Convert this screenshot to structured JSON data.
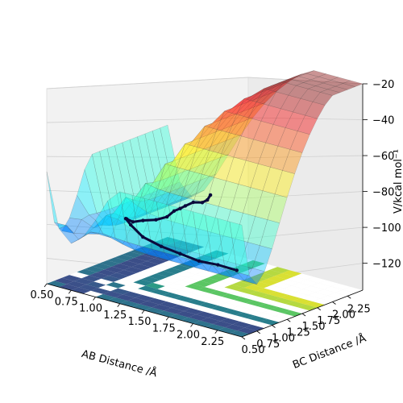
{
  "chart_data": {
    "type": "surface3d",
    "title": "",
    "xlabel": "AB Distance /Å",
    "ylabel": "BC Distance /Å",
    "zlabel": "V/kcal mol⁻¹",
    "xlim": [
      0.5,
      2.5
    ],
    "ylim": [
      0.5,
      2.5
    ],
    "zlim": [
      -135,
      -20
    ],
    "x_ticks": [
      "0.50",
      "0.75",
      "1.00",
      "1.25",
      "1.50",
      "1.75",
      "2.00",
      "2.25"
    ],
    "y_ticks": [
      "0.50",
      "0.75",
      "1.00",
      "1.25",
      "1.50",
      "1.75",
      "2.00",
      "2.25"
    ],
    "z_ticks": [
      "−20",
      "−40",
      "−60",
      "−80",
      "−100",
      "−120"
    ],
    "z_tick_values": [
      -20,
      -40,
      -60,
      -80,
      -100,
      -120
    ],
    "surface_colormap": "jet",
    "contour_colormap": "viridis",
    "grid": true,
    "trajectory": {
      "color": "#0a0a3c",
      "ab_distance": [
        2.3,
        2.1,
        1.9,
        1.7,
        1.5,
        1.3,
        1.15,
        1.05,
        0.98,
        0.95,
        0.96,
        1.0,
        1.02,
        1.0,
        0.97,
        0.96,
        0.98,
        1.01,
        1.0,
        0.97
      ],
      "bc_distance": [
        0.74,
        0.75,
        0.76,
        0.77,
        0.78,
        0.8,
        0.84,
        0.92,
        1.05,
        1.2,
        1.35,
        1.5,
        1.65,
        1.8,
        1.95,
        2.05,
        2.15,
        2.25,
        2.35,
        2.45
      ],
      "energy": [
        -104,
        -104,
        -105,
        -104,
        -103,
        -101,
        -97,
        -96,
        -99,
        -103,
        -104,
        -105,
        -105,
        -104,
        -105,
        -105,
        -104,
        -105,
        -105,
        -104
      ]
    }
  }
}
